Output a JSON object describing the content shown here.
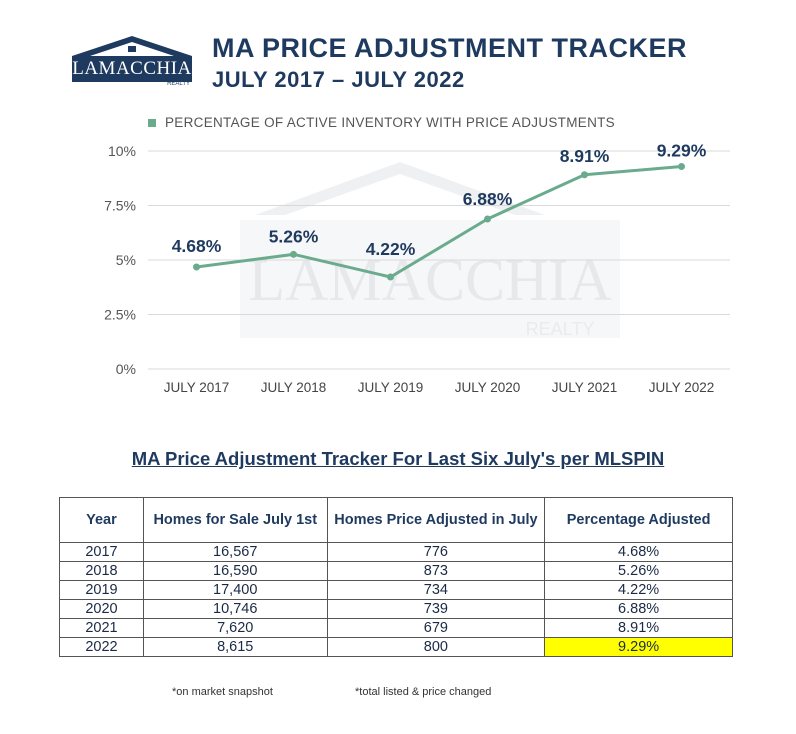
{
  "header": {
    "logo_text": "LAMACCHIA",
    "logo_sub": "REALTY",
    "title_line1": "MA PRICE ADJUSTMENT TRACKER",
    "title_line2": "JULY 2017 – JULY 2022"
  },
  "colors": {
    "line": "#6aab8e",
    "brand_navy": "#1f3a5f",
    "highlight": "#ffff00"
  },
  "chart_data": {
    "type": "line",
    "legend": "PERCENTAGE OF ACTIVE INVENTORY WITH PRICE ADJUSTMENTS",
    "legend_position": "top",
    "categories": [
      "JULY 2017",
      "JULY 2018",
      "JULY 2019",
      "JULY 2020",
      "JULY 2021",
      "JULY 2022"
    ],
    "series": [
      {
        "name": "PERCENTAGE OF ACTIVE INVENTORY WITH PRICE ADJUSTMENTS",
        "values": [
          4.68,
          5.26,
          4.22,
          6.88,
          8.91,
          9.29
        ]
      }
    ],
    "data_labels": [
      "4.68%",
      "5.26%",
      "4.22%",
      "6.88%",
      "8.91%",
      "9.29%"
    ],
    "y_ticks": [
      0,
      2.5,
      5,
      7.5,
      10
    ],
    "y_tick_labels": [
      "0%",
      "2.5%",
      "5%",
      "7.5%",
      "10%"
    ],
    "ylim": [
      0,
      10
    ],
    "grid": true,
    "watermark_text": [
      "LAMACCHIA",
      "REALTY"
    ]
  },
  "table": {
    "title": "MA Price Adjustment Tracker For Last Six July's per MLSPIN",
    "headers": [
      "Year",
      "Homes for Sale July 1st",
      "Homes Price Adjusted in July",
      "Percentage Adjusted"
    ],
    "rows": [
      [
        "2017",
        "16,567",
        "776",
        "4.68%"
      ],
      [
        "2018",
        "16,590",
        "873",
        "5.26%"
      ],
      [
        "2019",
        "17,400",
        "734",
        "4.22%"
      ],
      [
        "2020",
        "10,746",
        "739",
        "6.88%"
      ],
      [
        "2021",
        "7,620",
        "679",
        "8.91%"
      ],
      [
        "2022",
        "8,615",
        "800",
        "9.29%"
      ]
    ],
    "footnote_left": "*on market snapshot",
    "footnote_right": "*total listed & price changed"
  }
}
